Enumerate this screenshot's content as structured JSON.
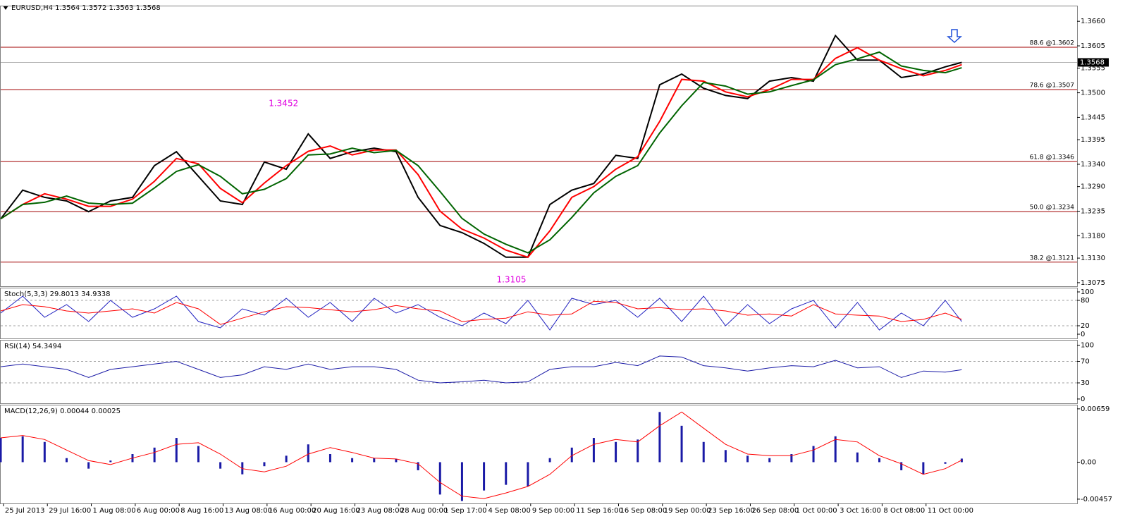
{
  "chart_data": [
    {
      "type": "line",
      "title": "EURUSD,H4  1.3564 1.3572 1.3563 1.3568",
      "x": [
        0,
        8,
        16,
        24,
        32,
        40,
        48,
        56,
        64,
        72,
        80,
        88,
        96,
        104,
        112,
        120,
        128,
        136,
        144,
        152,
        160,
        168,
        176,
        184,
        192,
        200,
        208,
        216,
        224,
        232,
        240,
        248,
        256,
        264,
        272,
        280,
        288,
        296,
        304,
        312,
        320,
        328,
        336,
        344,
        350
      ],
      "xlim": [
        0,
        392
      ],
      "xticks": [
        {
          "value": 1,
          "label": "25 Jul 2013"
        },
        {
          "value": 17,
          "label": "29 Jul 16:00"
        },
        {
          "value": 33,
          "label": "1 Aug 08:00"
        },
        {
          "value": 49,
          "label": "6 Aug 00:00"
        },
        {
          "value": 65,
          "label": "8 Aug 16:00"
        },
        {
          "value": 81,
          "label": "13 Aug 08:00"
        },
        {
          "value": 97,
          "label": "16 Aug 00:00"
        },
        {
          "value": 113,
          "label": "20 Aug 16:00"
        },
        {
          "value": 129,
          "label": "23 Aug 08:00"
        },
        {
          "value": 145,
          "label": "28 Aug 00:00"
        },
        {
          "value": 161,
          "label": "1 Sep 17:00"
        },
        {
          "value": 177,
          "label": "4 Sep 08:00"
        },
        {
          "value": 193,
          "label": "9 Sep 00:00"
        },
        {
          "value": 209,
          "label": "11 Sep 16:00"
        },
        {
          "value": 225,
          "label": "16 Sep 08:00"
        },
        {
          "value": 241,
          "label": "19 Sep 00:00"
        },
        {
          "value": 257,
          "label": "23 Sep 16:00"
        },
        {
          "value": 273,
          "label": "26 Sep 08:00"
        },
        {
          "value": 289,
          "label": "1 Oct 00:00"
        },
        {
          "value": 305,
          "label": "3 Oct 16:00"
        },
        {
          "value": 321,
          "label": "8 Oct 08:00"
        },
        {
          "value": 337,
          "label": "11 Oct 00:00"
        }
      ],
      "ylim": [
        1.3067,
        1.3695
      ],
      "yticks": [
        {
          "value": 1.366,
          "label": "1.3660"
        },
        1.3605,
        1.3555,
        {
          "value": 1.35,
          "label": "1.3500"
        },
        1.3445,
        1.3395,
        {
          "value": 1.334,
          "label": "1.3340"
        },
        {
          "value": 1.329,
          "label": "1.3290"
        },
        1.3235,
        {
          "value": 1.318,
          "label": "1.3180"
        },
        {
          "value": 1.313,
          "label": "1.3130"
        },
        1.3075
      ],
      "series": [
        {
          "color": "#000000",
          "values": [
            1.3218,
            1.3282,
            1.3266,
            1.3258,
            1.3234,
            1.3258,
            1.3266,
            1.3337,
            1.3368,
            1.3313,
            1.3258,
            1.325,
            1.3345,
            1.3329,
            1.3408,
            1.3353,
            1.3368,
            1.3376,
            1.3368,
            1.3266,
            1.3203,
            1.3187,
            1.3163,
            1.3132,
            1.3132,
            1.325,
            1.3282,
            1.3297,
            1.336,
            1.3353,
            1.3518,
            1.3542,
            1.351,
            1.3494,
            1.3487,
            1.3526,
            1.3534,
            1.3526,
            1.3628,
            1.3573,
            1.3573,
            1.3534,
            1.3542,
            1.3558,
            1.3568
          ]
        },
        {
          "color": "#ff0000",
          "values": [
            1.3218,
            1.325,
            1.3274,
            1.3262,
            1.3246,
            1.3246,
            1.3262,
            1.3302,
            1.3353,
            1.3341,
            1.3286,
            1.3254,
            1.3298,
            1.3337,
            1.3369,
            1.3381,
            1.3361,
            1.3372,
            1.3372,
            1.3317,
            1.3235,
            1.3195,
            1.3175,
            1.3148,
            1.3132,
            1.3191,
            1.3266,
            1.329,
            1.3329,
            1.3357,
            1.3436,
            1.353,
            1.3526,
            1.3502,
            1.3491,
            1.3507,
            1.353,
            1.353,
            1.3577,
            1.3601,
            1.3573,
            1.3554,
            1.3538,
            1.355,
            1.3563
          ]
        },
        {
          "color": "#006400",
          "values": [
            1.3218,
            1.325,
            1.3255,
            1.3269,
            1.3253,
            1.325,
            1.3253,
            1.3287,
            1.3324,
            1.3339,
            1.3313,
            1.3274,
            1.3284,
            1.3308,
            1.3361,
            1.3363,
            1.3376,
            1.3366,
            1.3371,
            1.3337,
            1.3279,
            1.3219,
            1.3184,
            1.3161,
            1.3142,
            1.3171,
            1.3221,
            1.3276,
            1.3313,
            1.3337,
            1.341,
            1.3471,
            1.3523,
            1.3515,
            1.3497,
            1.3502,
            1.3516,
            1.3529,
            1.3563,
            1.3576,
            1.3591,
            1.356,
            1.355,
            1.3545,
            1.3556
          ]
        }
      ],
      "levels": [
        {
          "value": 1.3602,
          "label": "88.6 @1.3602"
        },
        {
          "value": 1.3507,
          "label": "78.6 @1.3507"
        },
        {
          "value": 1.3346,
          "label": "61.8  @1.3346"
        },
        {
          "value": 1.3234,
          "label": "50.0  @1.3234"
        },
        {
          "value": 1.3121,
          "label": "38.2  @1.3121"
        }
      ],
      "level_color": "#a00000",
      "last_price": 1.3568,
      "annotations": [
        {
          "x": 103,
          "value": 1.3452,
          "position": "above",
          "color": "#e000e0"
        },
        {
          "x": 186,
          "value": 1.3105,
          "position": "below",
          "color": "#e000e0"
        }
      ]
    },
    {
      "type": "line",
      "title": "Stoch(5,3,3) 29.8013 34.9338",
      "x": [
        0,
        8,
        16,
        24,
        32,
        40,
        48,
        56,
        64,
        72,
        80,
        88,
        96,
        104,
        112,
        120,
        128,
        136,
        144,
        152,
        160,
        168,
        176,
        184,
        192,
        200,
        208,
        216,
        224,
        232,
        240,
        248,
        256,
        264,
        272,
        280,
        288,
        296,
        304,
        312,
        320,
        328,
        336,
        344,
        350
      ],
      "xlim": [
        0,
        392
      ],
      "ylim": [
        -10,
        110
      ],
      "yticks": [
        100,
        80,
        20,
        0
      ],
      "levels": [
        80,
        20
      ],
      "series": [
        {
          "color": "#2020c0",
          "values": [
            50,
            90,
            40,
            70,
            30,
            80,
            40,
            60,
            90,
            30,
            15,
            60,
            45,
            85,
            40,
            75,
            30,
            85,
            50,
            70,
            40,
            20,
            50,
            25,
            80,
            10,
            85,
            70,
            80,
            40,
            85,
            30,
            90,
            20,
            70,
            25,
            60,
            80,
            15,
            75,
            10,
            50,
            20,
            80,
            29.8013
          ]
        },
        {
          "color": "#ff0000",
          "values": [
            55,
            70,
            65,
            55,
            50,
            55,
            60,
            50,
            75,
            60,
            23,
            38,
            53,
            65,
            63,
            58,
            53,
            58,
            68,
            60,
            55,
            30,
            35,
            38,
            53,
            45,
            48,
            78,
            75,
            60,
            63,
            58,
            60,
            55,
            45,
            48,
            43,
            70,
            48,
            45,
            43,
            30,
            35,
            50,
            34.9338
          ]
        }
      ]
    },
    {
      "type": "line",
      "title": "RSI(14) 54.3494",
      "x": [
        0,
        8,
        16,
        24,
        32,
        40,
        48,
        56,
        64,
        72,
        80,
        88,
        96,
        104,
        112,
        120,
        128,
        136,
        144,
        152,
        160,
        168,
        176,
        184,
        192,
        200,
        208,
        216,
        224,
        232,
        240,
        248,
        256,
        264,
        272,
        280,
        288,
        296,
        304,
        312,
        320,
        328,
        336,
        344,
        350
      ],
      "xlim": [
        0,
        392
      ],
      "ylim": [
        -8,
        110
      ],
      "yticks": [
        100,
        70,
        30,
        0
      ],
      "levels": [
        70,
        30
      ],
      "series": [
        {
          "color": "#1a1aa6",
          "values": [
            60,
            65,
            60,
            55,
            40,
            55,
            60,
            65,
            70,
            55,
            40,
            45,
            60,
            55,
            65,
            55,
            60,
            60,
            55,
            35,
            30,
            32,
            35,
            30,
            32,
            55,
            60,
            60,
            68,
            62,
            80,
            78,
            62,
            58,
            52,
            58,
            62,
            60,
            72,
            58,
            60,
            40,
            52,
            50,
            54.3494
          ]
        }
      ]
    },
    {
      "type": "combo",
      "title": "MACD(12,26,9) 0.00044 0.00025",
      "x": [
        0,
        8,
        16,
        24,
        32,
        40,
        48,
        56,
        64,
        72,
        80,
        88,
        96,
        104,
        112,
        120,
        128,
        136,
        144,
        152,
        160,
        168,
        176,
        184,
        192,
        200,
        208,
        216,
        224,
        232,
        240,
        248,
        256,
        264,
        272,
        280,
        288,
        296,
        304,
        312,
        320,
        328,
        336,
        344,
        350
      ],
      "xlim": [
        0,
        392
      ],
      "ylim": [
        -0.0051,
        0.0071
      ],
      "yticks": [
        0.00659,
        {
          "value": 0,
          "label": "0.00"
        },
        -0.00457
      ],
      "series": [
        {
          "style": "histogram",
          "color": "#1a1aa6",
          "values": [
            0.003,
            0.0032,
            0.0025,
            0.0005,
            -0.0008,
            0.0002,
            0.001,
            0.0018,
            0.003,
            0.002,
            -0.0008,
            -0.0015,
            -0.0005,
            0.0008,
            0.0022,
            0.001,
            0.0005,
            0.0005,
            0.0004,
            -0.001,
            -0.004,
            -0.0048,
            -0.0035,
            -0.0028,
            -0.003,
            0.0005,
            0.0018,
            0.003,
            0.0025,
            0.0028,
            0.0062,
            0.0045,
            0.0025,
            0.0015,
            0.0008,
            0.0005,
            0.001,
            0.002,
            0.0032,
            0.0012,
            0.0005,
            -0.001,
            -0.0015,
            -0.0002,
            0.00044
          ]
        },
        {
          "style": "line",
          "color": "#ff0000",
          "values": [
            0.003,
            0.0033,
            0.0028,
            0.0015,
            0.0002,
            -0.0003,
            0.0005,
            0.0012,
            0.0022,
            0.0024,
            0.001,
            -0.0008,
            -0.0012,
            -0.0005,
            0.001,
            0.0018,
            0.0012,
            0.0005,
            0.0004,
            -0.0002,
            -0.0025,
            -0.0042,
            -0.0045,
            -0.0038,
            -0.003,
            -0.0015,
            0.0008,
            0.0022,
            0.0028,
            0.0025,
            0.0045,
            0.0062,
            0.0042,
            0.0022,
            0.001,
            0.0008,
            0.0008,
            0.0015,
            0.0028,
            0.0025,
            0.0008,
            -0.0002,
            -0.0015,
            -0.0008,
            0.00025
          ]
        }
      ]
    }
  ]
}
